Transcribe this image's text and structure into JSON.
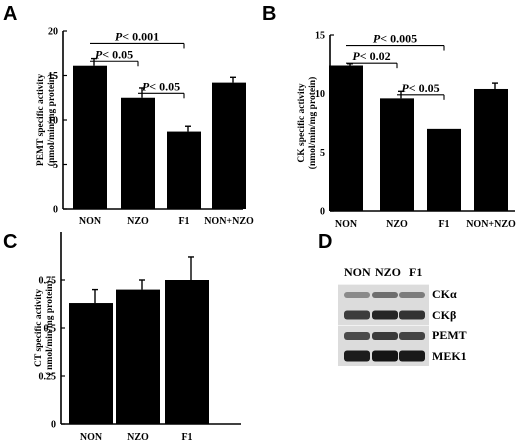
{
  "chart_data": [
    {
      "panel": "A",
      "type": "bar",
      "ylabel": "PEMT specific activity",
      "ylabel2": "(nmol/min/mg protein)",
      "ylim": [
        0,
        20
      ],
      "yticks": [
        0,
        5,
        10,
        15,
        20
      ],
      "yticklabels": [
        "0",
        "5",
        "10",
        "15",
        "20"
      ],
      "categories": [
        "NON",
        "NZO",
        "F1",
        "NON+NZO"
      ],
      "values": [
        16.1,
        12.5,
        8.7,
        14.2
      ],
      "errors": [
        0.8,
        1.1,
        0.6,
        0.6
      ],
      "annotations": [
        {
          "p": "P",
          "text": "< 0.001",
          "from": 0,
          "to": 2,
          "y": 18.6,
          "ends": "right"
        },
        {
          "p": "P",
          "text": "< 0.05",
          "from": 0,
          "to": 1,
          "y": 16.6,
          "ends": "right"
        },
        {
          "p": "P",
          "text": "< 0.05",
          "from": 1,
          "to": 2,
          "y": 13.0,
          "ends": "right"
        }
      ]
    },
    {
      "panel": "B",
      "type": "bar",
      "ylabel": "CK specific activity",
      "ylabel2": "(nmol/min/mg protein)",
      "ylim": [
        0,
        15
      ],
      "yticks": [
        0,
        5,
        10,
        15
      ],
      "yticklabels": [
        "0",
        "5",
        "10",
        "15"
      ],
      "categories": [
        "NON",
        "NZO",
        "F1",
        "NON+NZO"
      ],
      "values": [
        12.4,
        9.6,
        7.0,
        10.4
      ],
      "errors": [
        0.15,
        0.6,
        0.0,
        0.5
      ],
      "annotations": [
        {
          "p": "P",
          "text": "< 0.005",
          "from": 0,
          "to": 2,
          "y": 14.1,
          "ends": "right"
        },
        {
          "p": "P",
          "text": "< 0.02",
          "from": 0,
          "to": 1,
          "y": 12.6,
          "ends": "right"
        },
        {
          "p": "P",
          "text": "< 0.05",
          "from": 1,
          "to": 2,
          "y": 9.9,
          "ends": "right"
        }
      ]
    },
    {
      "panel": "C",
      "type": "bar",
      "ylabel": "CT specific activity",
      "ylabel2": "( nmol/min/mg protein)",
      "ylim": [
        0,
        1.0
      ],
      "yticks": [
        0,
        0.25,
        0.5,
        0.75
      ],
      "yticklabels": [
        "0",
        "0.25",
        "0.5",
        "0.75"
      ],
      "categories": [
        "NON",
        "NZO",
        "F1"
      ],
      "values": [
        0.63,
        0.7,
        0.75
      ],
      "errors": [
        0.07,
        0.05,
        0.12
      ],
      "annotations": []
    }
  ],
  "panel_letters": [
    "A",
    "B",
    "C",
    "D"
  ],
  "blot": {
    "columns": [
      "NON",
      "NZO",
      "F1"
    ],
    "rows": [
      "CKα",
      "CKβ",
      "PEMT",
      "MEK1"
    ]
  }
}
